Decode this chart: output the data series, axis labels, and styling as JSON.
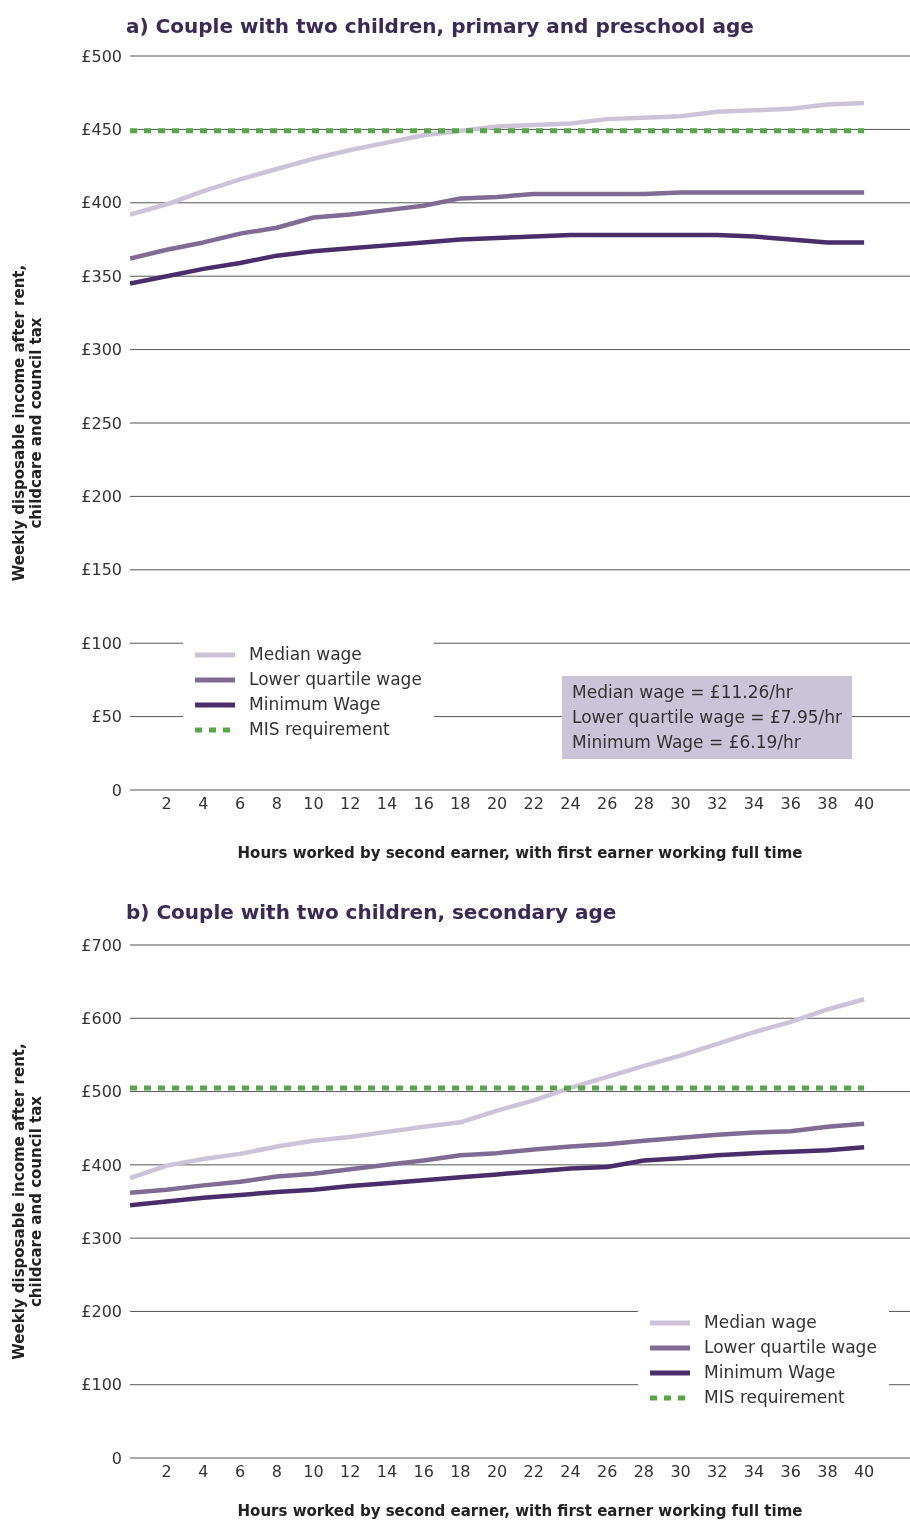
{
  "chart_data": [
    {
      "type": "line",
      "title": "a) Couple with two children, primary and preschool age",
      "xlabel": "Hours worked by second earner, with first earner working full time",
      "ylabel": "Weekly disposable income after rent,\nchildcare and council tax",
      "x": [
        0,
        2,
        4,
        6,
        8,
        10,
        12,
        14,
        16,
        18,
        20,
        22,
        24,
        26,
        28,
        30,
        32,
        34,
        36,
        38,
        40
      ],
      "xlim": [
        0,
        42.5
      ],
      "xticks": [
        2,
        4,
        6,
        8,
        10,
        12,
        14,
        16,
        18,
        20,
        22,
        24,
        26,
        28,
        30,
        32,
        34,
        36,
        38,
        40
      ],
      "ylim": [
        0,
        500
      ],
      "yticks": [
        0,
        {
          "value": 50,
          "label": "£50"
        },
        {
          "value": 100,
          "label": "£100"
        },
        {
          "value": 150,
          "label": "£150"
        },
        {
          "value": 200,
          "label": "£200"
        },
        {
          "value": 250,
          "label": "£250"
        },
        {
          "value": 300,
          "label": "£300"
        },
        {
          "value": 350,
          "label": "£350"
        },
        {
          "value": 400,
          "label": "£400"
        },
        {
          "value": 450,
          "label": "£450"
        },
        {
          "value": 500,
          "label": "£500"
        }
      ],
      "grid": "y",
      "legend": "bottom left",
      "marker": "none",
      "line_style": "solid",
      "series": [
        {
          "name": "Median wage",
          "color": "#cdc3d9",
          "values": [
            392,
            399,
            408,
            416,
            423,
            430,
            436,
            441,
            446,
            449,
            452,
            453,
            454,
            457,
            458,
            459,
            462,
            463,
            464,
            467,
            468
          ]
        },
        {
          "name": "Lower quartile wage",
          "color": "#806b95",
          "values": [
            362,
            368,
            373,
            379,
            383,
            390,
            392,
            395,
            398,
            403,
            404,
            406,
            406,
            406,
            406,
            407,
            407,
            407,
            407,
            407,
            407
          ]
        },
        {
          "name": "Minimum Wage",
          "color": "#4a2d6b",
          "values": [
            345,
            350,
            355,
            359,
            364,
            367,
            369,
            371,
            373,
            375,
            376,
            377,
            378,
            378,
            378,
            378,
            378,
            377,
            375,
            373,
            373
          ]
        },
        {
          "name": "MIS requirement",
          "color": "#55a846",
          "line_style": "dashed",
          "values": [
            449,
            449,
            449,
            449,
            449,
            449,
            449,
            449,
            449,
            449,
            449,
            449,
            449,
            449,
            449,
            449,
            449,
            449,
            449,
            449,
            449
          ]
        }
      ],
      "annotations": [
        "Median wage = £11.26/hr",
        "Lower quartile wage = £7.95/hr",
        "Minimum Wage = £6.19/hr"
      ]
    },
    {
      "type": "line",
      "title": "b) Couple with two children, secondary age",
      "xlabel": "Hours worked by second earner, with first earner working full time",
      "ylabel": "Weekly disposable income after rent,\nchildcare and council tax",
      "x": [
        0,
        2,
        4,
        6,
        8,
        10,
        12,
        14,
        16,
        18,
        20,
        22,
        24,
        26,
        28,
        30,
        32,
        34,
        36,
        38,
        40
      ],
      "xlim": [
        0,
        42.5
      ],
      "xticks": [
        2,
        4,
        6,
        8,
        10,
        12,
        14,
        16,
        18,
        20,
        22,
        24,
        26,
        28,
        30,
        32,
        34,
        36,
        38,
        40
      ],
      "ylim": [
        0,
        700
      ],
      "yticks": [
        0,
        {
          "value": 100,
          "label": "£100"
        },
        {
          "value": 200,
          "label": "£200"
        },
        {
          "value": 300,
          "label": "£300"
        },
        {
          "value": 400,
          "label": "£400"
        },
        {
          "value": 500,
          "label": "£500"
        },
        {
          "value": 600,
          "label": "£600"
        },
        {
          "value": 700,
          "label": "£700"
        }
      ],
      "grid": "y",
      "legend": "bottom right",
      "marker": "none",
      "line_style": "solid",
      "series": [
        {
          "name": "Median wage",
          "color": "#cdc3d9",
          "values": [
            382,
            399,
            408,
            415,
            425,
            433,
            438,
            445,
            452,
            458,
            474,
            488,
            505,
            520,
            535,
            549,
            565,
            581,
            595,
            612,
            626
          ]
        },
        {
          "name": "Lower quartile wage",
          "color": "#806b95",
          "values": [
            362,
            366,
            372,
            377,
            384,
            388,
            394,
            400,
            406,
            413,
            416,
            421,
            425,
            428,
            433,
            437,
            441,
            444,
            446,
            452,
            456
          ]
        },
        {
          "name": "Minimum Wage",
          "color": "#4a2d6b",
          "values": [
            345,
            350,
            355,
            359,
            363,
            366,
            371,
            375,
            379,
            383,
            387,
            391,
            395,
            397,
            406,
            409,
            413,
            416,
            418,
            420,
            424
          ]
        },
        {
          "name": "MIS requirement",
          "color": "#55a846",
          "line_style": "dashed",
          "values": [
            505,
            505,
            505,
            505,
            505,
            505,
            505,
            505,
            505,
            505,
            505,
            505,
            505,
            505,
            505,
            505,
            505,
            505,
            505,
            505,
            505
          ]
        }
      ]
    }
  ]
}
